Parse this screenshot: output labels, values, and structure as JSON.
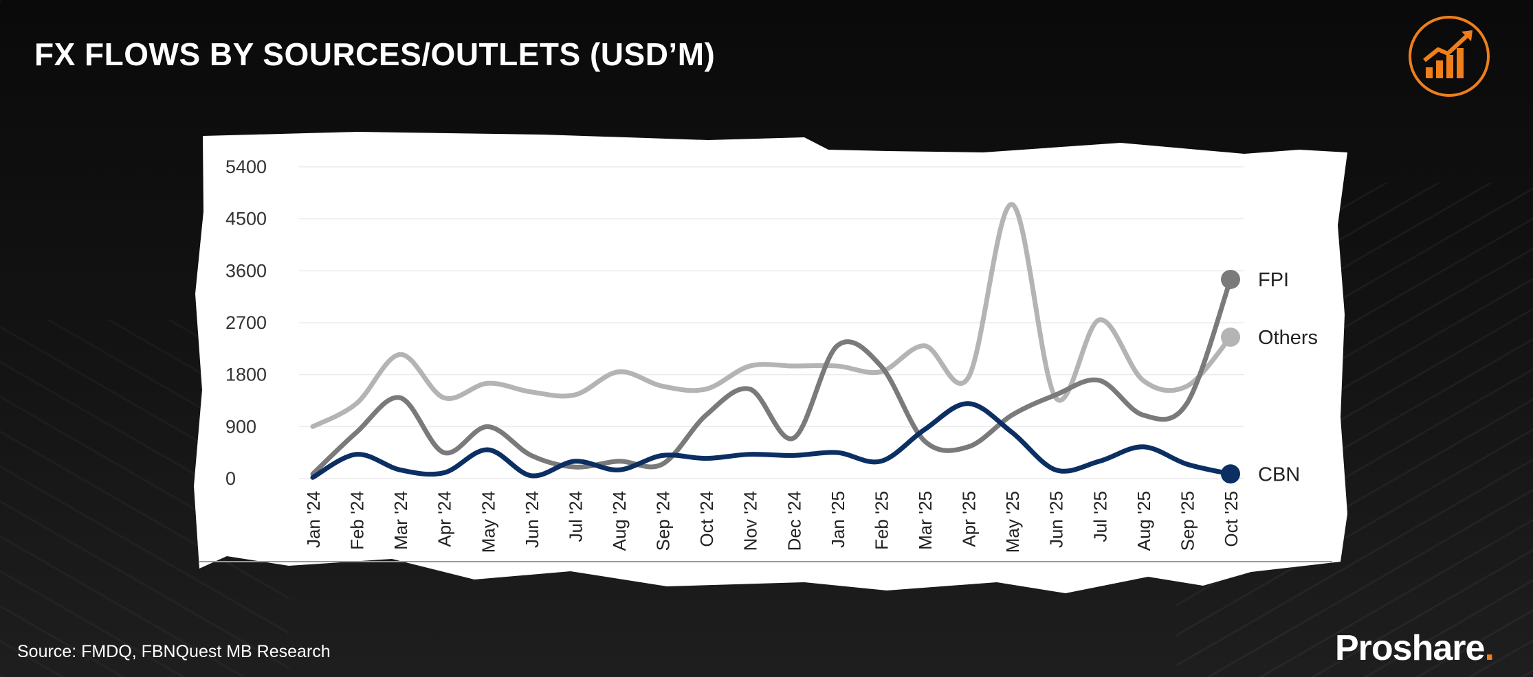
{
  "header": {
    "title": "FX FLOWS BY SOURCES/OUTLETS (USD’M)"
  },
  "logo": {
    "icon": "growth-chart-icon",
    "accent": "#ef7f1a"
  },
  "footer": {
    "source": "Source: FMDQ,  FBNQuest MB Research",
    "brand": "Proshare",
    "brand_dot": "."
  },
  "chart_data": {
    "type": "line",
    "ylim": [
      0,
      5400
    ],
    "yticks": [
      0,
      900,
      1800,
      2700,
      3600,
      4500,
      5400
    ],
    "ytick_labels": [
      "0",
      "900",
      "1800",
      "2700",
      "3600",
      "4500",
      "5400"
    ],
    "grid": true,
    "categories": [
      "Jan '24",
      "Feb '24",
      "Mar '24",
      "Apr '24",
      "May '24",
      "Jun '24",
      "Jul '24",
      "Aug '24",
      "Sep '24",
      "Oct '24",
      "Nov '24",
      "Dec '24",
      "Jan '25",
      "Feb '25",
      "Mar '25",
      "Apr '25",
      "May '25",
      "Jun '25",
      "Jul '25",
      "Aug '25",
      "Sep '25",
      "Oct '25"
    ],
    "series": [
      {
        "name": "Others",
        "color": "#b4b4b4",
        "values": [
          900,
          1300,
          2150,
          1400,
          1650,
          1500,
          1450,
          1850,
          1600,
          1550,
          1950,
          1950,
          1950,
          1850,
          2300,
          1750,
          4750,
          1400,
          2750,
          1700,
          1600,
          2450
        ]
      },
      {
        "name": "FPI",
        "color": "#7a7a7a",
        "values": [
          80,
          800,
          1400,
          450,
          900,
          400,
          200,
          300,
          250,
          1100,
          1550,
          700,
          2300,
          1950,
          650,
          550,
          1100,
          1450,
          1700,
          1100,
          1300,
          3450
        ]
      },
      {
        "name": "CBN",
        "color": "#0b2f63",
        "values": [
          20,
          420,
          150,
          100,
          500,
          50,
          300,
          150,
          400,
          350,
          420,
          400,
          450,
          300,
          850,
          1300,
          800,
          150,
          300,
          550,
          250,
          80
        ]
      }
    ]
  }
}
